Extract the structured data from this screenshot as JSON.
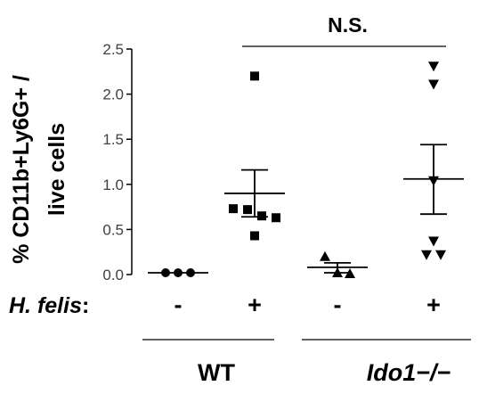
{
  "chart_data": {
    "type": "scatter",
    "ylabel_lines": [
      "% CD11b+Ly6G+ /",
      "live cells"
    ],
    "ylim": [
      0,
      2.5
    ],
    "yticks": [
      0.0,
      0.5,
      1.0,
      1.5,
      2.0,
      2.5
    ],
    "ytick_labels": [
      "0.0",
      "0.5",
      "1.0",
      "1.5",
      "2.0",
      "2.5"
    ],
    "row_label_main": "H. felis",
    "row_label_suffix": ":",
    "groups": [
      {
        "hfelis": "-",
        "genotype": "WT",
        "marker": "circle",
        "points": [
          0.02,
          0.02,
          0.02
        ],
        "mean": 0.02,
        "sem_low": 0.02,
        "sem_high": 0.02
      },
      {
        "hfelis": "+",
        "genotype": "WT",
        "marker": "square",
        "points": [
          2.2,
          0.73,
          0.72,
          0.65,
          0.63,
          0.43
        ],
        "mean": 0.9,
        "sem_low": 0.64,
        "sem_high": 1.16
      },
      {
        "hfelis": "-",
        "genotype": "Ido1-/-",
        "marker": "triangle-up",
        "points": [
          0.2,
          0.02,
          0.01
        ],
        "mean": 0.08,
        "sem_low": 0.02,
        "sem_high": 0.13
      },
      {
        "hfelis": "+",
        "genotype": "Ido1-/-",
        "marker": "triangle-down",
        "points": [
          2.31,
          2.11,
          1.04,
          0.37,
          0.22,
          0.22
        ],
        "mean": 1.06,
        "sem_low": 0.67,
        "sem_high": 1.44
      }
    ],
    "genotype_labels": [
      "WT",
      "Ido1−/−"
    ],
    "annotations": [
      {
        "text": "N.S.",
        "between_groups": [
          1,
          3
        ]
      }
    ]
  }
}
